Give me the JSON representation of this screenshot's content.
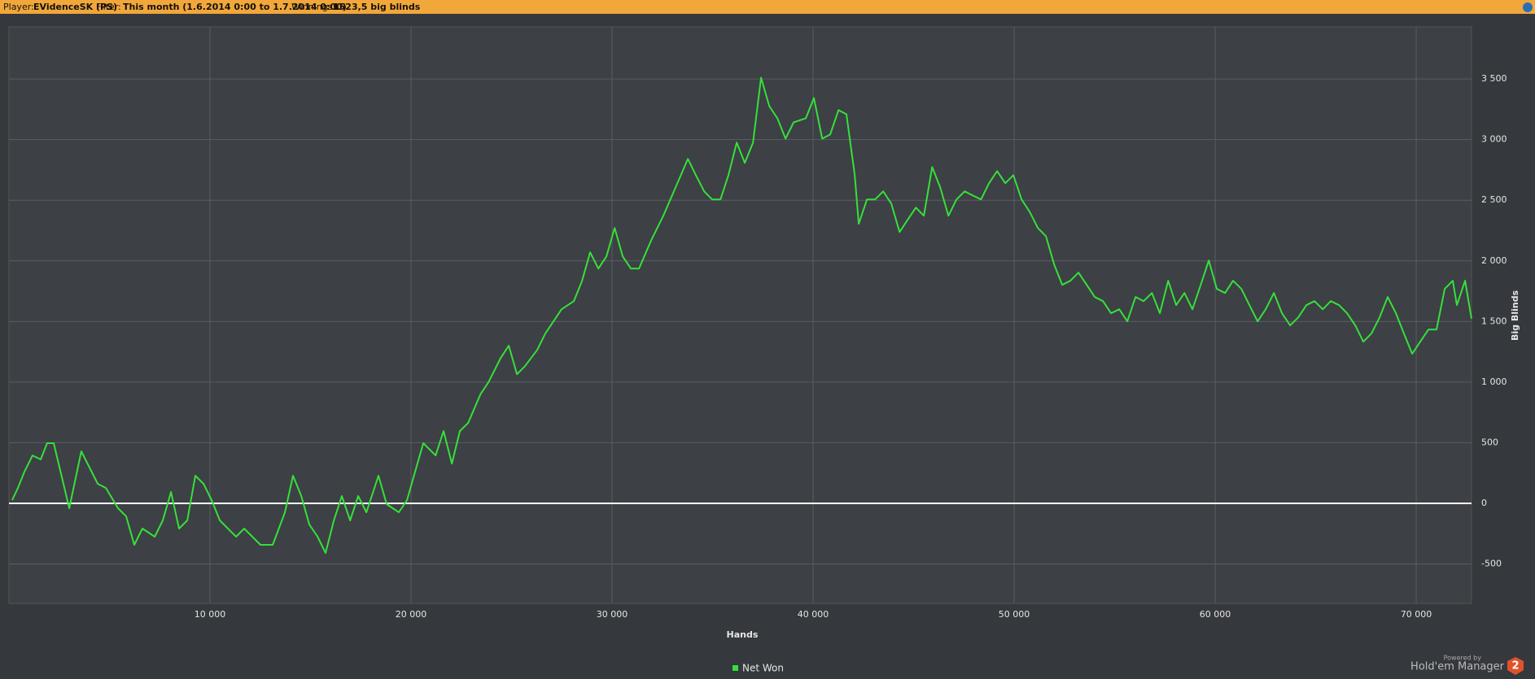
{
  "header": {
    "player_label": "Player:",
    "player": "EVidenceSK (PS)",
    "filter_label": "Filter:",
    "filter": "This month (1.6.2014 0:00 to 1.7.2014 0:00)",
    "winnings_label": "Winnings:",
    "winnings": "1523,5 big blinds"
  },
  "branding": {
    "powered_by": "Powered by",
    "product": "Hold'em Manager",
    "version": "2"
  },
  "chart_data": {
    "type": "line",
    "xlabel": "Hands",
    "ylabel": "Big Blinds",
    "xlim": [
      0,
      72750
    ],
    "ylim": [
      -825,
      3930
    ],
    "xticks": [
      {
        "value": 10000,
        "label": "10 000"
      },
      {
        "value": 20000,
        "label": "20 000"
      },
      {
        "value": 30000,
        "label": "30 000"
      },
      {
        "value": 40000,
        "label": "40 000"
      },
      {
        "value": 50000,
        "label": "50 000"
      },
      {
        "value": 60000,
        "label": "60 000"
      },
      {
        "value": 70000,
        "label": "70 000"
      }
    ],
    "yticks": [
      -500,
      0,
      500,
      {
        "value": 1000,
        "label": "1 000"
      },
      {
        "value": 1500,
        "label": "1 500"
      },
      {
        "value": 2000,
        "label": "2 000"
      },
      {
        "value": 2500,
        "label": "2 500"
      },
      {
        "value": 3000,
        "label": "3 000"
      },
      {
        "value": 3500,
        "label": "3 500"
      }
    ],
    "grid": true,
    "legend": "bottom",
    "x": [
      160,
      445,
      770,
      1175,
      1580,
      1900,
      2225,
      3000,
      3600,
      4415,
      4820,
      5425,
      5830,
      6235,
      6640,
      7250,
      7650,
      8060,
      8460,
      8870,
      9270,
      9680,
      10080,
      10490,
      10890,
      11300,
      11700,
      12510,
      13120,
      13730,
      14130,
      14540,
      14940,
      15350,
      15750,
      16160,
      16560,
      16970,
      17370,
      17780,
      18380,
      18790,
      19390,
      19800,
      20200,
      20610,
      21220,
      21620,
      22030,
      22430,
      22840,
      23450,
      23850,
      24460,
      24860,
      25270,
      25670,
      26280,
      26680,
      27490,
      28100,
      28510,
      28910,
      29320,
      29720,
      30130,
      30530,
      30940,
      31340,
      31950,
      32550,
      33160,
      33770,
      34170,
      34580,
      34980,
      35390,
      35790,
      36200,
      36600,
      37010,
      37410,
      37820,
      38220,
      38630,
      39030,
      39640,
      40040,
      40450,
      40850,
      41260,
      41660,
      42070,
      42270,
      42680,
      43080,
      43490,
      43890,
      44300,
      44700,
      45110,
      45510,
      45920,
      46320,
      46730,
      47130,
      47540,
      47940,
      48350,
      48750,
      49150,
      49560,
      49960,
      50370,
      50770,
      51180,
      51580,
      51990,
      52390,
      52800,
      53200,
      53610,
      54010,
      54420,
      54820,
      55230,
      55630,
      56040,
      56440,
      56850,
      57250,
      57660,
      58060,
      58470,
      58870,
      59280,
      59680,
      60080,
      60490,
      60890,
      61300,
      61700,
      62110,
      62510,
      62920,
      63320,
      63730,
      64130,
      64540,
      64940,
      65350,
      65750,
      66160,
      66560,
      66970,
      67370,
      67770,
      68180,
      68580,
      68990,
      69390,
      69800,
      70200,
      70610,
      71010,
      71420,
      71820,
      72020,
      72430,
      72750
    ],
    "series": [
      {
        "name": "Net Won",
        "color": "#35e03a",
        "values": [
          27,
          127,
          261,
          395,
          362,
          496,
          496,
          -40,
          429,
          161,
          127,
          -40,
          -107,
          -342,
          -208,
          -275,
          -141,
          94,
          -208,
          -141,
          228,
          161,
          27,
          -141,
          -208,
          -275,
          -208,
          -342,
          -342,
          -74,
          228,
          60,
          -174,
          -275,
          -409,
          -141,
          60,
          -141,
          60,
          -74,
          228,
          -7,
          -74,
          27,
          261,
          496,
          395,
          596,
          328,
          596,
          663,
          898,
          998,
          1199,
          1300,
          1065,
          1132,
          1266,
          1400,
          1601,
          1668,
          1836,
          2070,
          1936,
          2037,
          2271,
          2037,
          1936,
          1936,
          2171,
          2372,
          2606,
          2841,
          2707,
          2573,
          2506,
          2506,
          2707,
          2975,
          2807,
          2975,
          3511,
          3276,
          3176,
          3008,
          3142,
          3176,
          3343,
          3008,
          3042,
          3243,
          3209,
          2707,
          2305,
          2506,
          2506,
          2573,
          2472,
          2238,
          2338,
          2439,
          2372,
          2774,
          2606,
          2372,
          2506,
          2573,
          2539,
          2506,
          2640,
          2740,
          2640,
          2707,
          2506,
          2405,
          2271,
          2204,
          1970,
          1802,
          1836,
          1903,
          1802,
          1702,
          1668,
          1568,
          1601,
          1501,
          1702,
          1668,
          1735,
          1568,
          1836,
          1635,
          1735,
          1601,
          1802,
          2003,
          1769,
          1735,
          1836,
          1769,
          1635,
          1501,
          1601,
          1735,
          1568,
          1467,
          1534,
          1635,
          1668,
          1601,
          1668,
          1635,
          1568,
          1467,
          1333,
          1400,
          1534,
          1702,
          1568,
          1400,
          1233,
          1333,
          1434,
          1434,
          1769,
          1836,
          1635,
          1836,
          1523
        ]
      }
    ]
  }
}
